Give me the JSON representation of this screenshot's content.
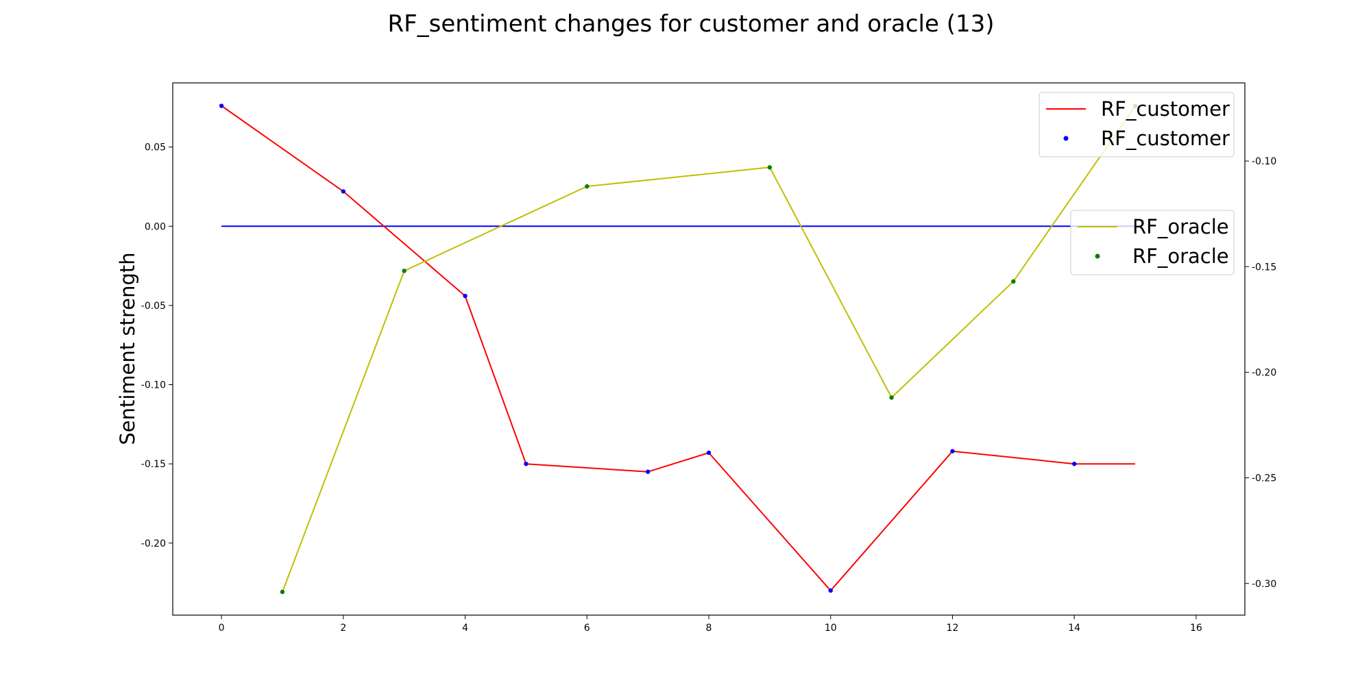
{
  "chart_data": {
    "type": "line",
    "title": "RF_sentiment changes for customer and oracle (13)",
    "ylabel": "Sentiment strength",
    "xlim": [
      -0.8,
      16.8
    ],
    "x_ticks": [
      0,
      2,
      4,
      6,
      8,
      10,
      12,
      14,
      16
    ],
    "left_axis": {
      "ylim": [
        -0.2455,
        0.0905
      ],
      "ticks": [
        0.05,
        0.0,
        -0.05,
        -0.1,
        -0.15,
        -0.2
      ],
      "tick_labels": [
        "0.05",
        "0.00",
        "-0.05",
        "-0.10",
        "-0.15",
        "-0.20"
      ]
    },
    "right_axis": {
      "ylim": [
        -0.315,
        -0.063
      ],
      "ticks": [
        -0.1,
        -0.15,
        -0.2,
        -0.25,
        -0.3
      ],
      "tick_labels": [
        "-0.10",
        "-0.15",
        "-0.20",
        "-0.25",
        "-0.30"
      ]
    },
    "zero_line": {
      "y": 0,
      "x_range": [
        0,
        15
      ],
      "color": "#0000ff"
    },
    "series": [
      {
        "name": "RF_customer",
        "axis": "left",
        "line_color": "#ff0000",
        "marker_color": "#0000ff",
        "x": [
          0,
          2,
          4,
          5,
          7,
          8,
          10,
          12,
          14,
          15
        ],
        "y": [
          0.076,
          0.022,
          -0.044,
          -0.15,
          -0.155,
          -0.143,
          -0.23,
          -0.142,
          -0.15,
          -0.15
        ],
        "marker_x": [
          0,
          2,
          4,
          5,
          7,
          8,
          10,
          12,
          14
        ]
      },
      {
        "name": "RF_oracle",
        "axis": "right",
        "line_color": "#bfbf00",
        "marker_color": "#008000",
        "x": [
          1,
          3,
          6,
          9,
          11,
          13,
          15
        ],
        "y": [
          -0.304,
          -0.152,
          -0.112,
          -0.103,
          -0.212,
          -0.157,
          -0.074
        ],
        "marker_x": [
          1,
          3,
          6,
          9,
          11,
          13,
          15
        ]
      }
    ],
    "legends": [
      {
        "placement": "top-right",
        "entries": [
          {
            "label": "RF_customer",
            "kind": "line",
            "color": "#ff0000"
          },
          {
            "label": "RF_customer",
            "kind": "marker",
            "color": "#0000ff"
          }
        ]
      },
      {
        "placement": "right",
        "entries": [
          {
            "label": "RF_oracle",
            "kind": "line",
            "color": "#bfbf00"
          },
          {
            "label": "RF_oracle",
            "kind": "marker",
            "color": "#008000"
          }
        ]
      }
    ]
  }
}
